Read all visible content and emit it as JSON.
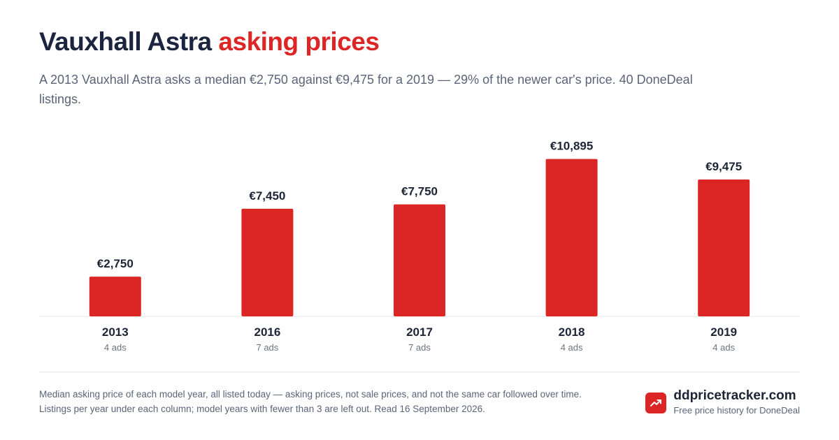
{
  "header": {
    "title_plain": "Vauxhall Astra",
    "title_accent": "asking prices",
    "subtitle": "A 2013 Vauxhall Astra asks a median €2,750 against €9,475 for a 2019 — 29% of the newer car's price. 40 DoneDeal listings."
  },
  "chart_data": {
    "type": "bar",
    "categories": [
      "2013",
      "2016",
      "2017",
      "2018",
      "2019"
    ],
    "values": [
      2750,
      7450,
      7750,
      10895,
      9475
    ],
    "value_labels": [
      "€2,750",
      "€7,450",
      "€7,750",
      "€10,895",
      "€9,475"
    ],
    "sub_labels": [
      "4 ads",
      "7 ads",
      "7 ads",
      "4 ads",
      "4 ads"
    ],
    "title": "",
    "xlabel": "",
    "ylabel": "",
    "ylim": [
      0,
      11600
    ],
    "grid": false,
    "bar_color": "#dc2626"
  },
  "footer": {
    "note": "Median asking price of each model year, all listed today — asking prices, not sale prices, and not the same car followed over time. Listings per year under each column; model years with fewer than 3 are left out. Read 16 September 2026.",
    "brand_name": "ddpricetracker.com",
    "brand_tagline": "Free price history for DoneDeal",
    "brand_icon": "trending-up-icon",
    "accent_color": "#dc2626"
  }
}
